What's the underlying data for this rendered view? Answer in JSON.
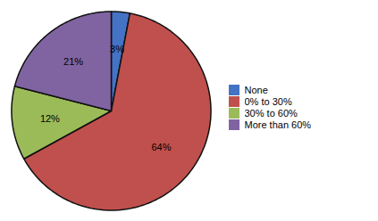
{
  "chart_data": {
    "type": "pie",
    "categories": [
      "None",
      "0% to 30%",
      "30% to 60%",
      "More than 60%"
    ],
    "values": [
      3,
      64,
      12,
      21
    ],
    "value_labels": [
      "3%",
      "64%",
      "12%",
      "21%"
    ],
    "colors": [
      "#4472C4",
      "#C0504D",
      "#9BBB59",
      "#8064A2"
    ],
    "data_labels": true,
    "legend": "right"
  }
}
